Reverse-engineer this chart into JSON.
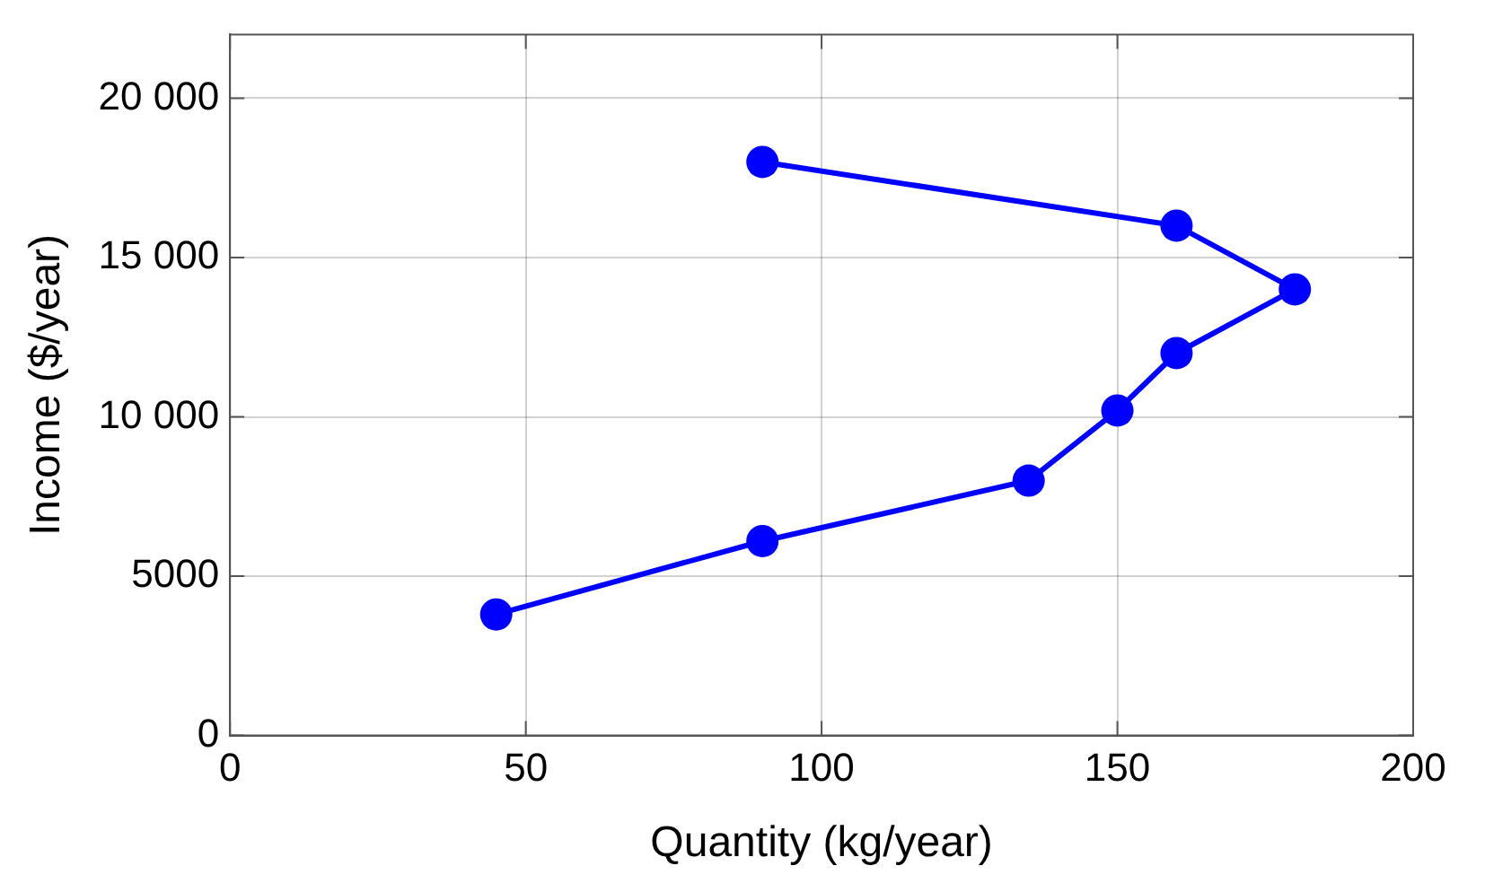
{
  "chart_data": {
    "type": "line",
    "xlabel": "Quantity (kg/year)",
    "ylabel": "Income ($/year)",
    "x": [
      45,
      90,
      135,
      150,
      160,
      180,
      160,
      90
    ],
    "series": [
      {
        "color": "#0000ff",
        "values": [
          3800,
          6100,
          8000,
          10200,
          12000,
          14000,
          16000,
          18000
        ]
      }
    ],
    "xlim": [
      0,
      200
    ],
    "xticks": [
      0,
      50,
      100,
      150,
      200
    ],
    "ylim": [
      0,
      22000
    ],
    "yticks": [
      0,
      5000,
      {
        "value": 10000,
        "label": "10 000"
      },
      {
        "value": 15000,
        "label": "15 000"
      },
      {
        "value": 20000,
        "label": "20 000"
      }
    ],
    "grid": true,
    "legend": false,
    "marker": "circle",
    "line_style": "solid"
  }
}
